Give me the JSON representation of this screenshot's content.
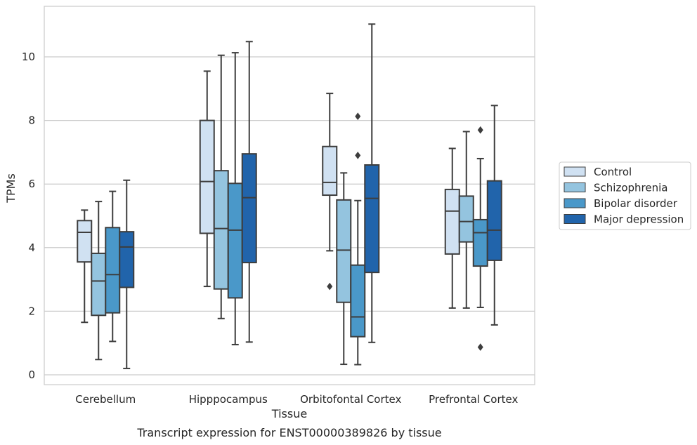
{
  "chart_data": {
    "type": "box",
    "xlabel": "Tissue",
    "ylabel": "TPMs",
    "caption": "Transcript expression for ENST00000389826 by tissue",
    "ylim": [
      -0.3,
      11.6
    ],
    "yticks": [
      0,
      2,
      4,
      6,
      8,
      10
    ],
    "grid": "horizontal",
    "legend_position": "right",
    "categories": [
      "Cerebellum",
      "Hipppocampus",
      "Orbitofontal Cortex",
      "Prefrontal Cortex"
    ],
    "series": [
      {
        "name": "Control",
        "color": "#d0e1f2",
        "boxes": [
          {
            "whislo": 1.65,
            "q1": 3.55,
            "med": 4.48,
            "q3": 4.85,
            "whishi": 5.18,
            "fliers": []
          },
          {
            "whislo": 2.78,
            "q1": 4.45,
            "med": 6.08,
            "q3": 8.0,
            "whishi": 9.55,
            "fliers": []
          },
          {
            "whislo": 3.9,
            "q1": 5.65,
            "med": 6.05,
            "q3": 7.18,
            "whishi": 8.85,
            "fliers": [
              2.78
            ]
          },
          {
            "whislo": 2.1,
            "q1": 3.8,
            "med": 5.15,
            "q3": 5.83,
            "whishi": 7.12,
            "fliers": []
          }
        ]
      },
      {
        "name": "Schizophrenia",
        "color": "#94c4df",
        "boxes": [
          {
            "whislo": 0.48,
            "q1": 1.87,
            "med": 2.95,
            "q3": 3.82,
            "whishi": 5.45,
            "fliers": []
          },
          {
            "whislo": 1.77,
            "q1": 2.7,
            "med": 4.6,
            "q3": 6.42,
            "whishi": 10.05,
            "fliers": []
          },
          {
            "whislo": 0.33,
            "q1": 2.28,
            "med": 3.92,
            "q3": 5.5,
            "whishi": 6.35,
            "fliers": []
          },
          {
            "whislo": 2.1,
            "q1": 4.18,
            "med": 4.82,
            "q3": 5.62,
            "whishi": 7.65,
            "fliers": []
          }
        ]
      },
      {
        "name": "Bipolar disorder",
        "color": "#4a98c9",
        "boxes": [
          {
            "whislo": 1.05,
            "q1": 1.95,
            "med": 3.15,
            "q3": 4.63,
            "whishi": 5.77,
            "fliers": []
          },
          {
            "whislo": 0.95,
            "q1": 2.42,
            "med": 4.55,
            "q3": 6.02,
            "whishi": 10.13,
            "fliers": []
          },
          {
            "whislo": 0.32,
            "q1": 1.2,
            "med": 1.82,
            "q3": 3.45,
            "whishi": 5.48,
            "fliers": [
              6.9,
              8.13
            ]
          },
          {
            "whislo": 2.12,
            "q1": 3.42,
            "med": 4.47,
            "q3": 4.88,
            "whishi": 6.8,
            "fliers": [
              0.87,
              7.7
            ]
          }
        ]
      },
      {
        "name": "Major depression",
        "color": "#2164ab",
        "boxes": [
          {
            "whislo": 0.2,
            "q1": 2.75,
            "med": 4.02,
            "q3": 4.5,
            "whishi": 6.12,
            "fliers": []
          },
          {
            "whislo": 1.03,
            "q1": 3.53,
            "med": 5.57,
            "q3": 6.95,
            "whishi": 10.48,
            "fliers": []
          },
          {
            "whislo": 1.02,
            "q1": 3.22,
            "med": 5.55,
            "q3": 6.6,
            "whishi": 11.03,
            "fliers": []
          },
          {
            "whislo": 1.57,
            "q1": 3.6,
            "med": 4.55,
            "q3": 6.1,
            "whishi": 8.47,
            "fliers": []
          }
        ]
      }
    ]
  }
}
